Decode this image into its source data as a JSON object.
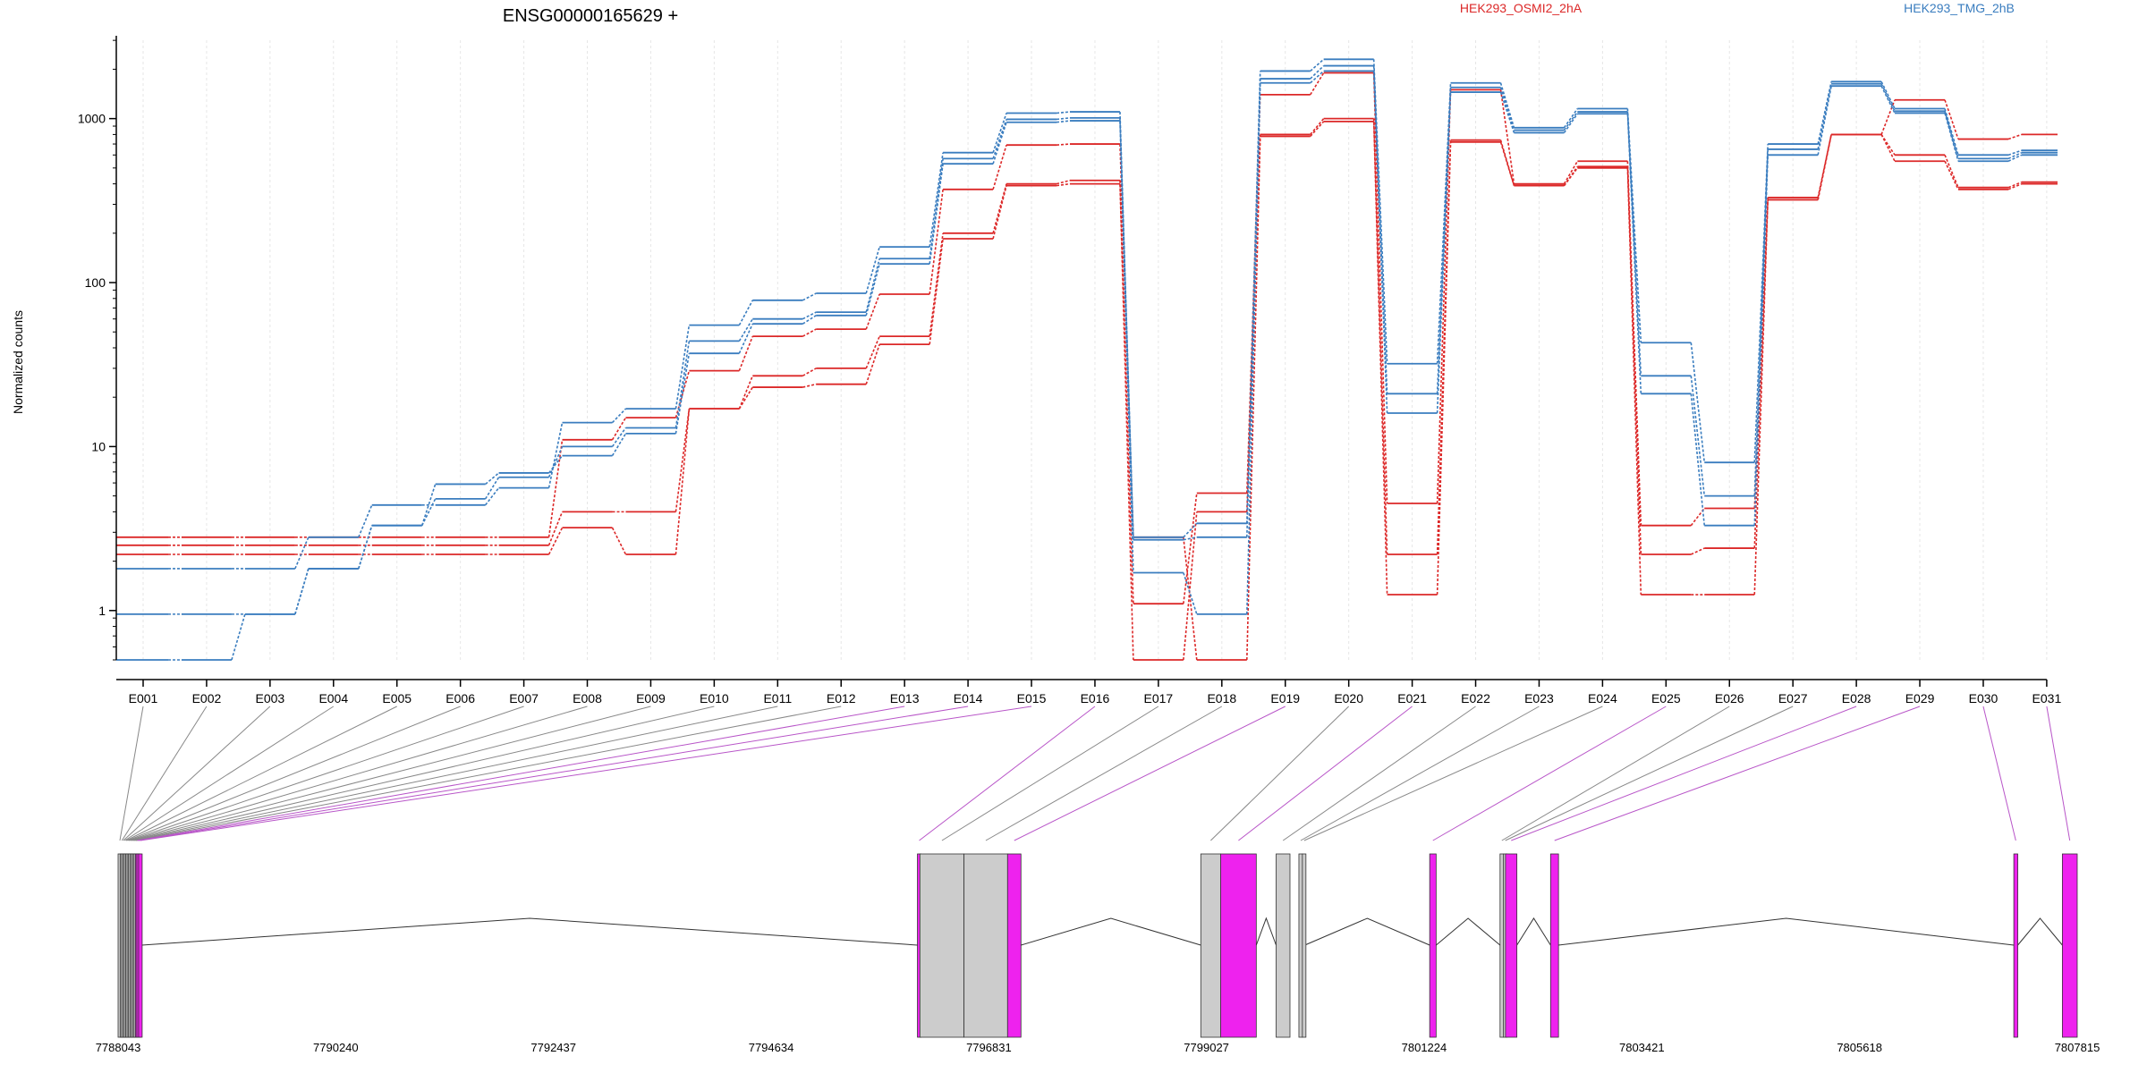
{
  "chart_data": {
    "type": "line",
    "title": "ENSG00000165629 +",
    "ylabel": "Normalized counts",
    "xlabel": "",
    "yscale": "log",
    "ylim": [
      0.5,
      3200
    ],
    "y_ticks": [
      "1",
      "10",
      "100",
      "1000"
    ],
    "grid": "vertical-dashed",
    "legend": "top",
    "colors": {
      "HEK293_OSMI2_2hA": "#dc2828",
      "HEK293_TMG_2hB": "#3a7dbf",
      "exon_highlight": "#ee22ee",
      "exon_plain": "#cccccc",
      "connector_plain": "#888888",
      "connector_highlight": "#b855c8"
    },
    "categories": [
      "E001",
      "E002",
      "E003",
      "E004",
      "E005",
      "E006",
      "E007",
      "E008",
      "E009",
      "E010",
      "E011",
      "E012",
      "E013",
      "E014",
      "E015",
      "E016",
      "E017",
      "E018",
      "E019",
      "E020",
      "E021",
      "E022",
      "E023",
      "E024",
      "E025",
      "E026",
      "E027",
      "E028",
      "E029",
      "E030",
      "E031"
    ],
    "series": [
      {
        "name": "HEK293_OSMI2_2hA",
        "values": [
          2.5,
          2.5,
          2.5,
          2.5,
          2.5,
          2.5,
          2.5,
          4,
          4,
          17,
          27,
          30,
          47,
          200,
          400,
          420,
          1.1,
          5.2,
          1400,
          1900,
          4.5,
          1500,
          400,
          550,
          3.3,
          4.2,
          320,
          800,
          1300,
          750,
          800
        ]
      },
      {
        "name": "HEK293_OSMI2_2hA",
        "values": [
          2.2,
          2.2,
          2.2,
          2.2,
          2.2,
          2.2,
          2.2,
          3.2,
          2.2,
          17,
          23,
          24,
          42,
          185,
          390,
          400,
          0.5,
          4,
          800,
          1000,
          2.2,
          740,
          390,
          510,
          2.2,
          2.4,
          330,
          800,
          600,
          380,
          410
        ]
      },
      {
        "name": "HEK293_OSMI2_2hA",
        "values": [
          2.8,
          2.8,
          2.8,
          2.8,
          2.8,
          2.8,
          2.8,
          11,
          15,
          29,
          47,
          52,
          85,
          370,
          690,
          700,
          2.8,
          0.5,
          780,
          960,
          1.25,
          720,
          390,
          500,
          1.25,
          1.25,
          320,
          800,
          550,
          370,
          400
        ]
      },
      {
        "name": "HEK293_TMG_2hB",
        "values": [
          1.8,
          1.8,
          1.8,
          2.8,
          4.4,
          4.4,
          5.6,
          14,
          17,
          55,
          78,
          86,
          165,
          620,
          1080,
          1100,
          2.8,
          3.4,
          1950,
          2300,
          32,
          1650,
          880,
          1150,
          43,
          8,
          700,
          1680,
          1150,
          600,
          640
        ]
      },
      {
        "name": "HEK293_TMG_2hB",
        "values": [
          0.95,
          0.95,
          0.95,
          1.8,
          3.3,
          4.8,
          6.5,
          10,
          13,
          44,
          60,
          66,
          140,
          570,
          990,
          1010,
          2.7,
          2.8,
          1750,
          2100,
          21,
          1550,
          850,
          1100,
          27,
          5,
          650,
          1630,
          1110,
          570,
          620
        ]
      },
      {
        "name": "HEK293_TMG_2hB",
        "values": [
          0.5,
          0.5,
          0.95,
          1.8,
          3.3,
          5.9,
          6.9,
          8.8,
          12,
          37,
          56,
          63,
          130,
          530,
          950,
          970,
          1.7,
          0.95,
          1650,
          1950,
          16,
          1450,
          820,
          1070,
          21,
          3.3,
          600,
          1580,
          1080,
          550,
          600
        ]
      }
    ],
    "genome_axis_ticks": [
      "7788043",
      "7790240",
      "7792437",
      "7794634",
      "7796831",
      "7799027",
      "7801224",
      "7803421",
      "7805618",
      "7807815"
    ],
    "genome_range": [
      7788043,
      7807815
    ],
    "exons": [
      {
        "label": "E001",
        "start": 7788043,
        "end": 7788064,
        "highlight": false
      },
      {
        "label": "E002",
        "start": 7788064,
        "end": 7788078,
        "highlight": false
      },
      {
        "label": "E003",
        "start": 7788078,
        "end": 7788092,
        "highlight": false
      },
      {
        "label": "E004",
        "start": 7788092,
        "end": 7788106,
        "highlight": false
      },
      {
        "label": "E005",
        "start": 7788106,
        "end": 7788120,
        "highlight": false
      },
      {
        "label": "E006",
        "start": 7788120,
        "end": 7788134,
        "highlight": false
      },
      {
        "label": "E007",
        "start": 7788134,
        "end": 7788148,
        "highlight": false
      },
      {
        "label": "E008",
        "start": 7788148,
        "end": 7788162,
        "highlight": false
      },
      {
        "label": "E009",
        "start": 7788162,
        "end": 7788176,
        "highlight": false
      },
      {
        "label": "E010",
        "start": 7788176,
        "end": 7788190,
        "highlight": false
      },
      {
        "label": "E011",
        "start": 7788190,
        "end": 7788204,
        "highlight": false
      },
      {
        "label": "E012",
        "start": 7788204,
        "end": 7788218,
        "highlight": false
      },
      {
        "label": "E013",
        "start": 7788218,
        "end": 7788232,
        "highlight": true
      },
      {
        "label": "E014",
        "start": 7788232,
        "end": 7788250,
        "highlight": true
      },
      {
        "label": "E015",
        "start": 7788250,
        "end": 7788283,
        "highlight": true
      },
      {
        "label": "E016",
        "start": 7796110,
        "end": 7796135,
        "highlight": true
      },
      {
        "label": "E017",
        "start": 7796135,
        "end": 7796580,
        "highlight": false
      },
      {
        "label": "E018",
        "start": 7796580,
        "end": 7797020,
        "highlight": false
      },
      {
        "label": "E019",
        "start": 7797020,
        "end": 7797155,
        "highlight": true
      },
      {
        "label": "E020",
        "start": 7798970,
        "end": 7799170,
        "highlight": false
      },
      {
        "label": "E021",
        "start": 7799170,
        "end": 7799530,
        "highlight": true
      },
      {
        "label": "E022",
        "start": 7799730,
        "end": 7799870,
        "highlight": false
      },
      {
        "label": "E023",
        "start": 7799960,
        "end": 7799995,
        "highlight": false
      },
      {
        "label": "E024",
        "start": 7799995,
        "end": 7800020,
        "highlight": false
      },
      {
        "label": "E025",
        "start": 7801280,
        "end": 7801345,
        "highlight": true
      },
      {
        "label": "E026",
        "start": 7801990,
        "end": 7802025,
        "highlight": false
      },
      {
        "label": "E027",
        "start": 7802025,
        "end": 7802045,
        "highlight": false
      },
      {
        "label": "E028",
        "start": 7802045,
        "end": 7802160,
        "highlight": true
      },
      {
        "label": "E029",
        "start": 7802500,
        "end": 7802580,
        "highlight": true
      },
      {
        "label": "E030",
        "start": 7807175,
        "end": 7807215,
        "highlight": true
      },
      {
        "label": "E031",
        "start": 7807665,
        "end": 7807815,
        "highlight": true
      }
    ]
  }
}
